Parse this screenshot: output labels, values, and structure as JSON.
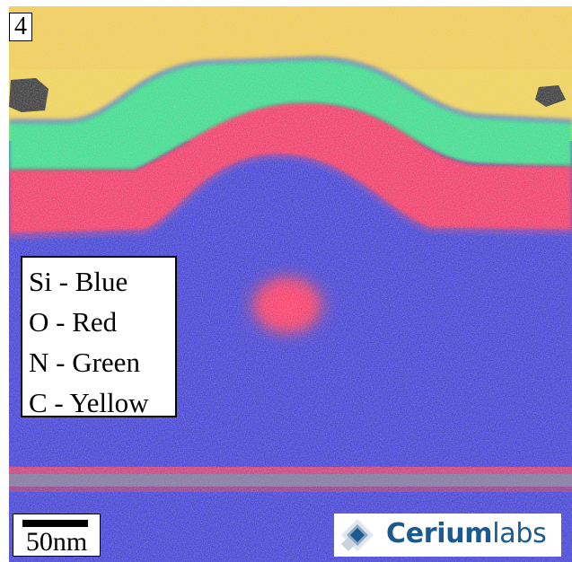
{
  "panel_number": "4",
  "legend": [
    {
      "text": "Si - Blue",
      "color": "#2a27d8"
    },
    {
      "text": "O - Red",
      "color": "#f0185f"
    },
    {
      "text": "N - Green",
      "color": "#1fe08c"
    },
    {
      "text": "C - Yellow",
      "color": "#f0d84a"
    }
  ],
  "scale_bar": {
    "label": "50nm",
    "length_nm": 50
  },
  "logo": {
    "word_bold": "Cerium",
    "word_light": "labs",
    "color": "#1a5a8f"
  }
}
